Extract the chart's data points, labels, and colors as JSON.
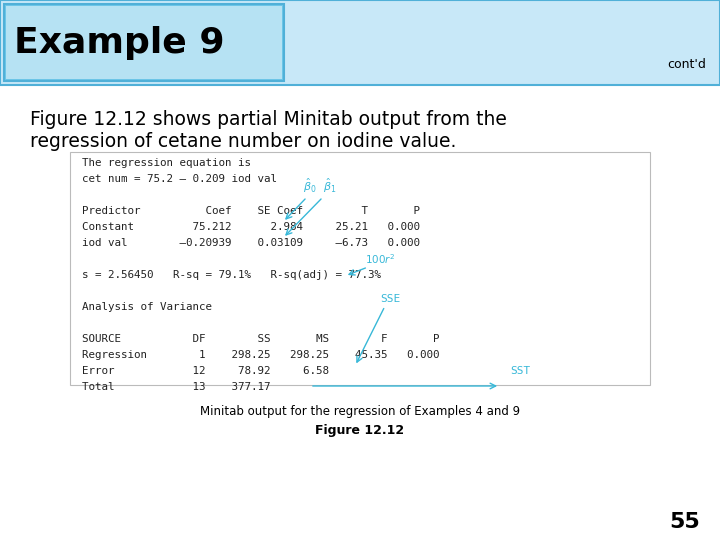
{
  "title": "Example 9",
  "contd": "cont'd",
  "subtitle_line1": "Figure 12.12 shows partial Minitab output from the",
  "subtitle_line2": "regression of cetane number on iodine value.",
  "caption1": "Minitab output for the regression of Examples 4 and 9",
  "caption2": "Figure 12.12",
  "page_number": "55",
  "minitab_lines": [
    "The regression equation is",
    "cet num = 75.2 – 0.209 iod val",
    "",
    "Predictor          Coef    SE Coef         T       P",
    "Constant         75.212      2.984     25.21   0.000",
    "iod val        –0.20939    0.03109     –6.73   0.000",
    "",
    "s = 2.56450   R-sq = 79.1%   R-sq(adj) = 77.3%",
    "",
    "Analysis of Variance",
    "",
    "SOURCE           DF        SS       MS        F       P",
    "Regression        1    298.25   298.25    45.35   0.000",
    "Error            12     78.92     6.58",
    "Total            13    377.17"
  ],
  "header_bg_left": "#70c8e8",
  "header_bg_right": "#c8e8f8",
  "header_border": "#50b0d8",
  "bg_color": "#ffffff",
  "annotation_color": "#38b8d8",
  "title_color": "#000000",
  "title_fontsize": 26,
  "subtitle_fontsize": 13.5,
  "mono_fontsize": 7.8
}
